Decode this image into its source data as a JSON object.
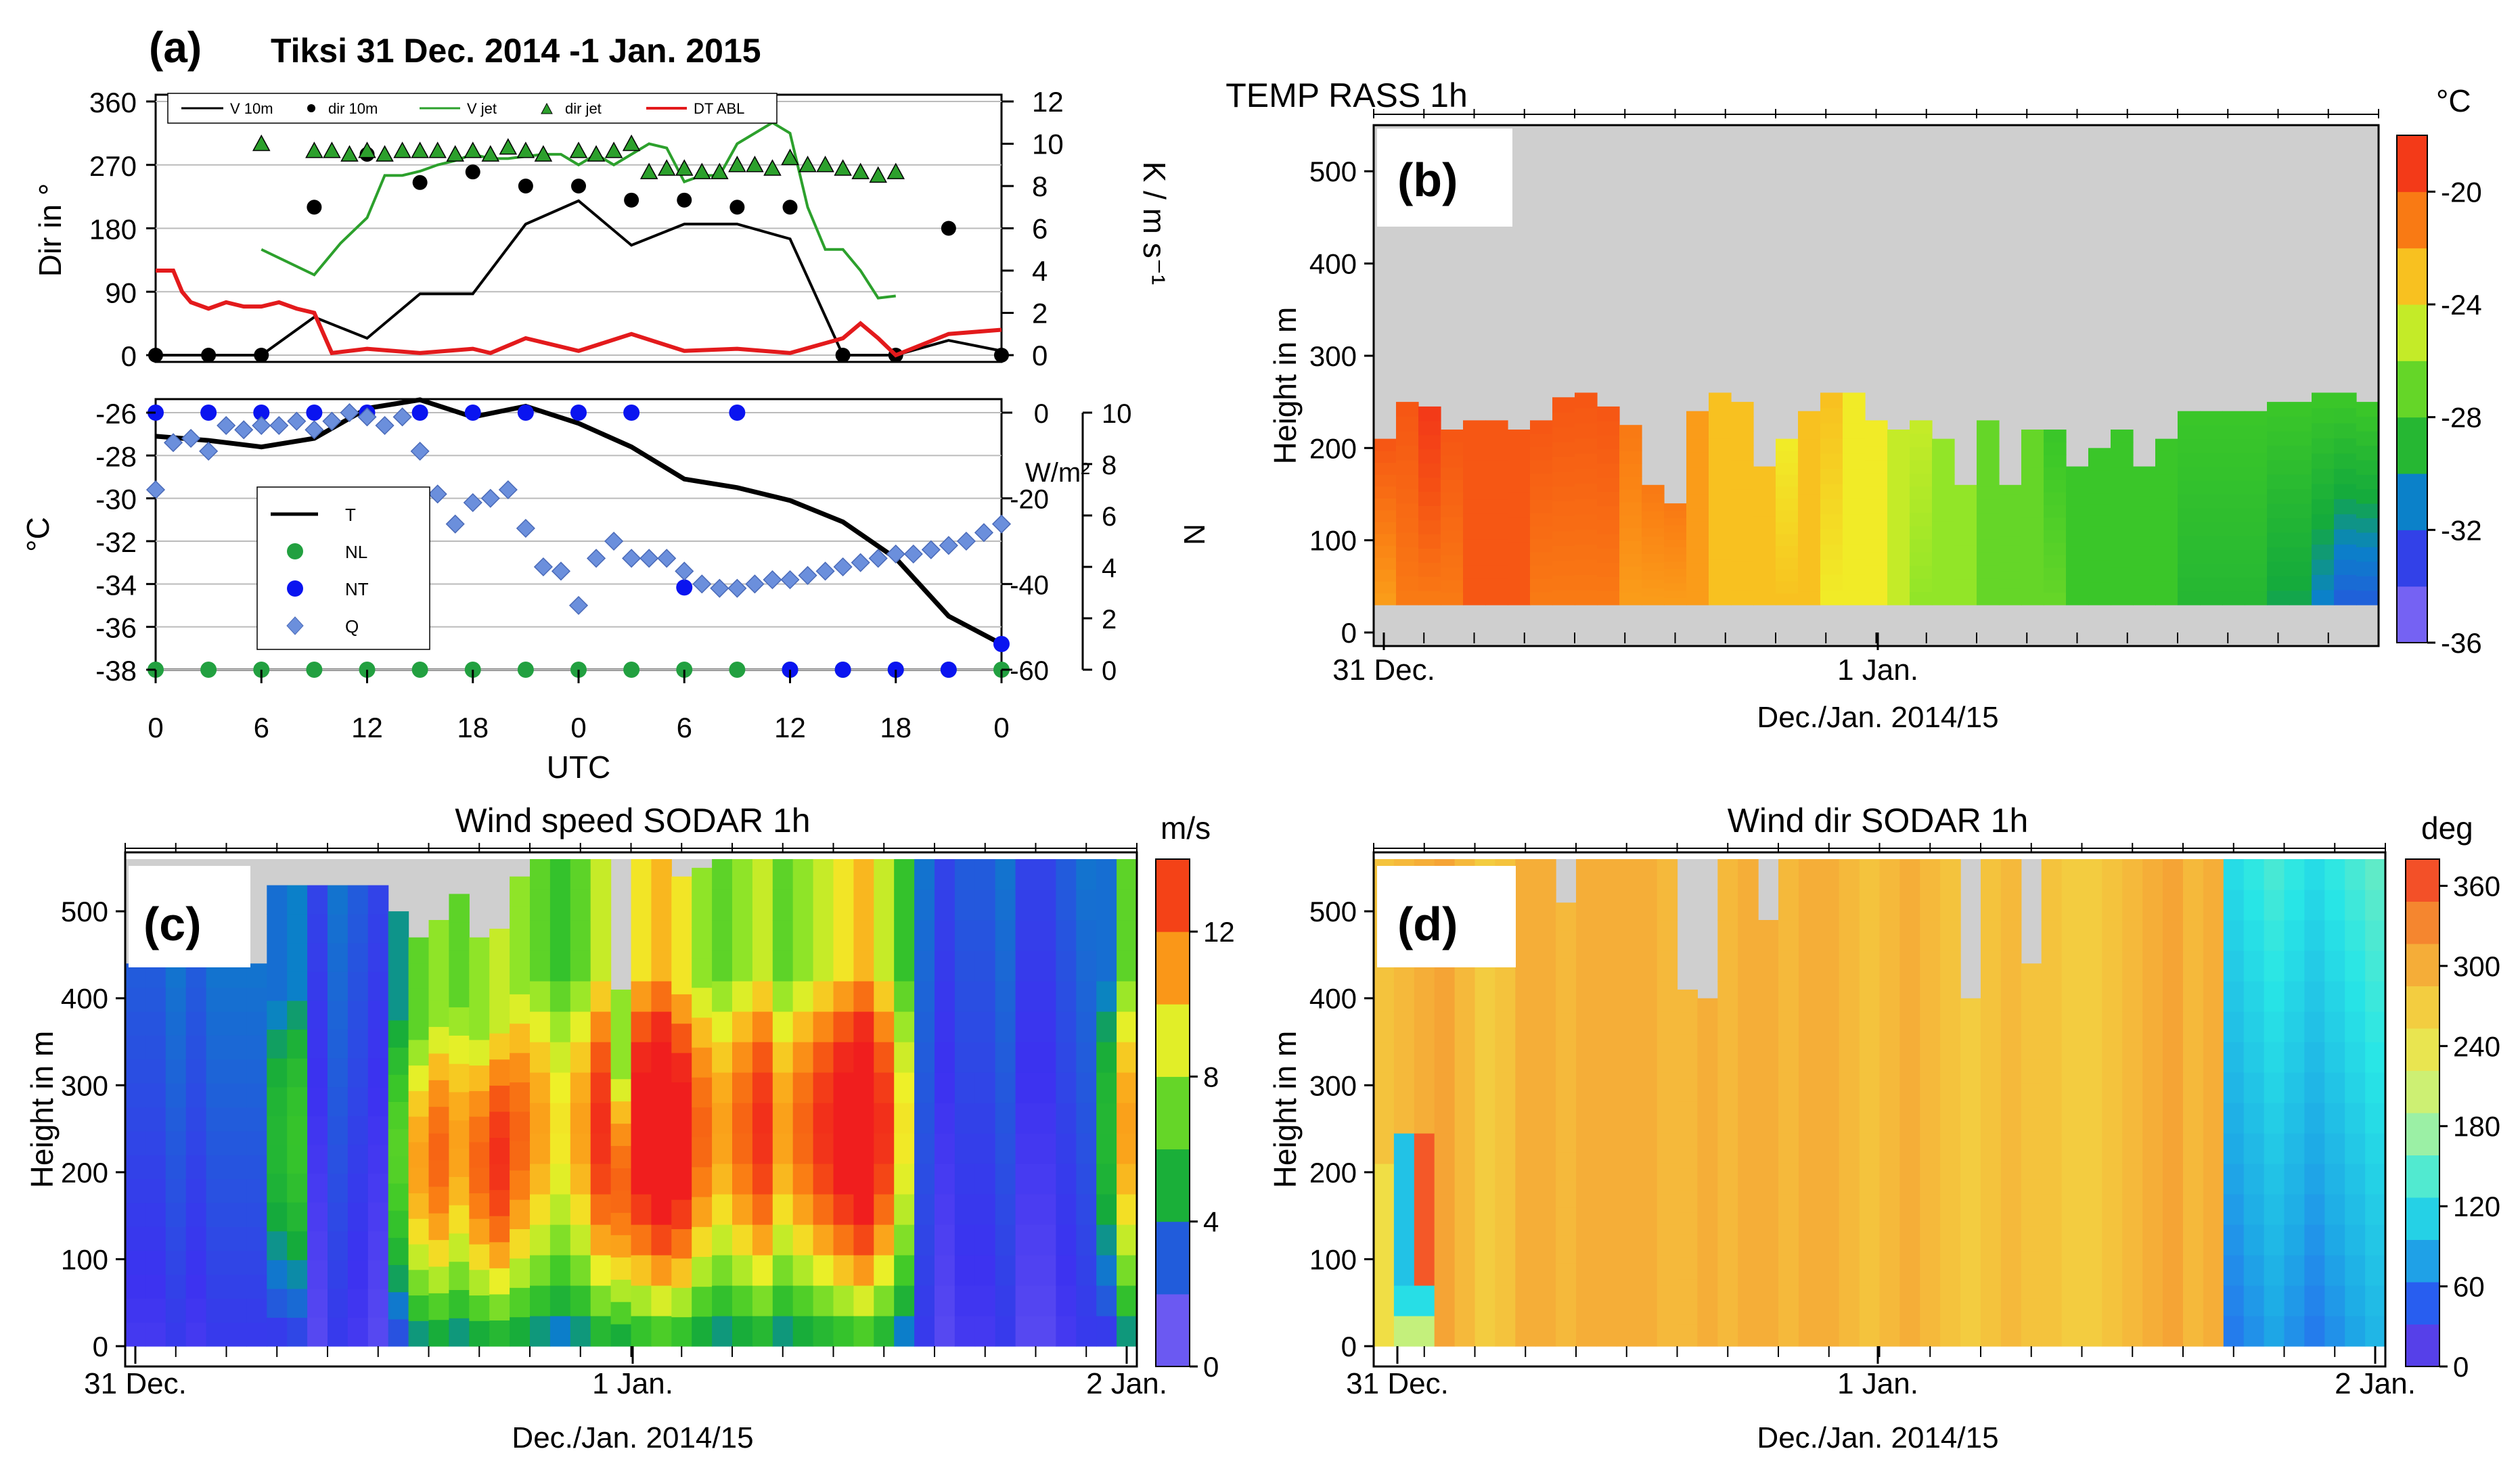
{
  "chart_data": [
    {
      "id": "a",
      "type": "line",
      "label": "(a)",
      "title": "Tiksi 31 Dec. 2014 -1 Jan. 2015",
      "x_ticks": [
        "0",
        "6",
        "12",
        "18",
        "0",
        "6",
        "12",
        "18",
        "0"
      ],
      "xlabel": "UTC",
      "top": {
        "ylabel_left": "Dir in °",
        "ylabel_right": "K / m s⁻¹",
        "yticks_left": [
          "360",
          "270",
          "180",
          "90",
          "0"
        ],
        "yticks_right": [
          "12",
          "10",
          "8",
          "6",
          "4",
          "2",
          "0"
        ],
        "ylim_left": [
          0,
          360
        ],
        "ylim_right": [
          0,
          12
        ],
        "legend": [
          "V 10m",
          "dir 10m",
          "V jet",
          "dir jet",
          "DT ABL"
        ],
        "series": [
          {
            "name": "V 10m",
            "color": "#000000",
            "axis": "right",
            "x": [
              6,
              9,
              12,
              15,
              18,
              21,
              24,
              27,
              30,
              33,
              36,
              39,
              42,
              45,
              48
            ],
            "values": [
              0,
              1.8,
              0.8,
              2.9,
              2.9,
              6.2,
              7.3,
              5.2,
              6.2,
              6.2,
              5.5,
              0,
              0,
              0.7,
              0.2
            ]
          },
          {
            "name": "dir 10m",
            "color": "#000000",
            "axis": "left",
            "x": [
              0,
              3,
              6,
              9,
              12,
              15,
              18,
              21,
              24,
              27,
              30,
              33,
              36,
              39,
              42,
              45,
              48
            ],
            "values": [
              0,
              0,
              0,
              210,
              285,
              245,
              260,
              240,
              240,
              220,
              220,
              210,
              210,
              0,
              0,
              180,
              0
            ]
          },
          {
            "name": "V jet",
            "color": "#2ca02c",
            "axis": "right",
            "x": [
              6,
              9,
              10.5,
              12,
              13,
              14,
              15,
              16,
              17,
              18,
              19,
              20,
              21,
              22,
              23,
              24,
              25,
              26,
              27,
              28,
              29,
              30,
              31,
              32,
              33,
              34,
              35,
              36,
              37,
              38,
              39,
              40,
              41,
              42
            ],
            "values": [
              5,
              3.8,
              5.3,
              6.5,
              8.5,
              8.5,
              8.7,
              9,
              9.2,
              9.5,
              9.3,
              9.3,
              9.4,
              9.5,
              9.5,
              9,
              9.5,
              9,
              9.5,
              10,
              9.8,
              8.2,
              8.5,
              8.5,
              10,
              10.5,
              11,
              10.5,
              7,
              5,
              5,
              4,
              2.7,
              2.8
            ]
          },
          {
            "name": "dir jet",
            "color": "#2ca02c",
            "axis": "left",
            "x": [
              6,
              9,
              10,
              11,
              12,
              13,
              14,
              15,
              16,
              17,
              18,
              19,
              20,
              21,
              22,
              24,
              25,
              26,
              27,
              28,
              29,
              30,
              31,
              32,
              33,
              34,
              35,
              36,
              37,
              38,
              39,
              40,
              41,
              42
            ],
            "values": [
              300,
              290,
              290,
              285,
              290,
              285,
              290,
              290,
              290,
              285,
              290,
              285,
              295,
              290,
              285,
              290,
              285,
              290,
              300,
              260,
              265,
              265,
              260,
              260,
              270,
              270,
              265,
              280,
              270,
              270,
              265,
              260,
              255,
              260
            ]
          },
          {
            "name": "DT ABL",
            "color": "#e31a1c",
            "axis": "right",
            "x": [
              0,
              1,
              1.5,
              2,
              3,
              4,
              5,
              6,
              7,
              8,
              9,
              10,
              12,
              15,
              18,
              19,
              21,
              24,
              27,
              30,
              33,
              36,
              39,
              40,
              41,
              42,
              45,
              48
            ],
            "values": [
              4,
              4,
              3,
              2.5,
              2.2,
              2.5,
              2.3,
              2.3,
              2.5,
              2.2,
              2,
              0.1,
              0.3,
              0.1,
              0.3,
              0.1,
              0.8,
              0.2,
              1,
              0.2,
              0.3,
              0.1,
              0.8,
              1.5,
              0.8,
              0,
              1,
              1.2
            ]
          }
        ]
      },
      "bottom": {
        "ylabel_left": "°C",
        "ylabel_mid": "W/m²",
        "ylabel_right": "N",
        "yticks_left": [
          "-26",
          "-28",
          "-30",
          "-32",
          "-34",
          "-36",
          "-38"
        ],
        "yticks_mid": [
          "0",
          "-20",
          "-40",
          "-60"
        ],
        "yticks_right": [
          "10",
          "8",
          "6",
          "4",
          "2",
          "0"
        ],
        "ylim_left": [
          -38,
          -26
        ],
        "ylim_mid": [
          -60,
          0
        ],
        "ylim_right": [
          0,
          10
        ],
        "legend": [
          "T",
          "NL",
          "NT",
          "Q"
        ],
        "series": [
          {
            "name": "T",
            "color": "#000000",
            "axis": "left",
            "x": [
              0,
              3,
              6,
              9,
              12,
              15,
              18,
              21,
              24,
              27,
              30,
              33,
              36,
              39,
              42,
              45,
              48
            ],
            "values": [
              -27.1,
              -27.3,
              -27.6,
              -27.2,
              -25.8,
              -25.4,
              -26.2,
              -25.7,
              -26.5,
              -27.6,
              -29.1,
              -29.5,
              -30.1,
              -31.1,
              -32.8,
              -35.5,
              -36.8
            ]
          },
          {
            "name": "NL",
            "color": "#22a040",
            "axis": "right",
            "x": [
              0,
              3,
              6,
              9,
              12,
              15,
              18,
              21,
              24,
              27,
              30,
              33,
              36,
              39,
              42,
              45,
              48
            ],
            "values": [
              0,
              0,
              0,
              0,
              0,
              0,
              0,
              0,
              0,
              0,
              0,
              0,
              0,
              0,
              0,
              0,
              0
            ]
          },
          {
            "name": "NT",
            "color": "#0a14f0",
            "axis": "right",
            "x": [
              0,
              3,
              6,
              9,
              12,
              15,
              18,
              21,
              24,
              27,
              30,
              33,
              36,
              39,
              42,
              45,
              48
            ],
            "values": [
              10,
              10,
              10,
              10,
              10,
              10,
              10,
              10,
              10,
              10,
              3.2,
              10,
              0,
              0,
              0,
              0,
              1
            ]
          },
          {
            "name": "Q",
            "color": "#6b8fdc",
            "axis": "mid",
            "x": [
              0,
              1,
              2,
              3,
              4,
              5,
              6,
              7,
              8,
              9,
              10,
              11,
              12,
              13,
              14,
              15,
              16,
              17,
              18,
              19,
              20,
              21,
              22,
              23,
              24,
              25,
              26,
              27,
              28,
              29,
              30,
              31,
              32,
              33,
              34,
              35,
              36,
              37,
              38,
              39,
              40,
              41,
              42,
              43,
              44,
              45,
              46,
              47,
              48
            ],
            "values": [
              -18,
              -7,
              -6,
              -9,
              -3,
              -4,
              -3,
              -3,
              -2,
              -4,
              -2,
              0,
              -1,
              -3,
              -1,
              -9,
              -19,
              -26,
              -21,
              -20,
              -18,
              -27,
              -36,
              -37,
              -45,
              -34,
              -30,
              -34,
              -34,
              -34,
              -37,
              -40,
              -41,
              -41,
              -40,
              -39,
              -39,
              -38,
              -37,
              -36,
              -35,
              -34,
              -33,
              -33,
              -32,
              -31,
              -30,
              -28,
              -26
            ]
          }
        ]
      }
    },
    {
      "id": "b",
      "type": "heatmap",
      "label": "(b)",
      "title": "TEMP RASS 1h",
      "ylabel": "Height in m",
      "xlabel": "Dec./Jan. 2014/15",
      "x_ticks": [
        "31 Dec.",
        "1 Jan."
      ],
      "yticks": [
        "500",
        "400",
        "300",
        "200",
        "100",
        "0"
      ],
      "ylim": [
        0,
        550
      ],
      "colorbar_unit": "°C",
      "colorbar_ticks": [
        "-20",
        "-24",
        "-28",
        "-32",
        "-36"
      ],
      "crange": [
        -36,
        -18
      ],
      "top_heights": [
        210,
        250,
        245,
        220,
        230,
        230,
        220,
        230,
        255,
        260,
        245,
        225,
        160,
        140,
        240,
        260,
        250,
        180,
        210,
        240,
        260,
        260,
        230,
        220,
        230,
        210,
        160,
        230,
        160,
        220,
        220,
        180,
        200,
        220,
        180,
        210,
        240,
        240,
        240,
        240,
        250,
        250,
        260,
        260,
        250
      ],
      "surface_temps": [
        -22,
        -21,
        -21,
        -21,
        -20,
        -20,
        -20,
        -21,
        -21,
        -21,
        -21,
        -22,
        -22,
        -22,
        -22,
        -23,
        -23,
        -23,
        -23,
        -23,
        -24,
        -24,
        -24,
        -25,
        -26,
        -26,
        -26,
        -27,
        -27,
        -27,
        -27,
        -28,
        -28,
        -28,
        -28,
        -28,
        -29,
        -29,
        -29,
        -29,
        -30,
        -30,
        -31,
        -32,
        -32
      ],
      "top_temps": [
        -20,
        -20,
        -19,
        -20,
        -20,
        -20,
        -20,
        -20,
        -20,
        -20,
        -20,
        -21,
        -21,
        -21,
        -22,
        -23,
        -23,
        -23,
        -24,
        -23,
        -23,
        -24,
        -24,
        -25,
        -25,
        -26,
        -26,
        -27,
        -27,
        -27,
        -28,
        -28,
        -28,
        -28,
        -28,
        -28,
        -28,
        -28,
        -28,
        -28,
        -28,
        -28,
        -28,
        -28,
        -28
      ]
    },
    {
      "id": "c",
      "type": "heatmap",
      "label": "(c)",
      "title": "Wind speed SODAR 1h",
      "ylabel": "Height in m",
      "xlabel": "Dec./Jan. 2014/15",
      "x_ticks": [
        "31 Dec.",
        "1 Jan.",
        "2 Jan."
      ],
      "yticks": [
        "500",
        "400",
        "300",
        "200",
        "100",
        "0"
      ],
      "ylim": [
        0,
        560
      ],
      "colorbar_unit": "m/s",
      "colorbar_ticks": [
        "12",
        "8",
        "4",
        "0"
      ],
      "crange": [
        0,
        14
      ],
      "top_heights": [
        440,
        440,
        440,
        440,
        440,
        440,
        440,
        530,
        530,
        530,
        530,
        530,
        530,
        500,
        470,
        490,
        520,
        470,
        480,
        540,
        560,
        560,
        560,
        560,
        410,
        560,
        560,
        540,
        550,
        560,
        560,
        560,
        560,
        560,
        560,
        560,
        560,
        560,
        560,
        560,
        560,
        560,
        560,
        560,
        560,
        560,
        560,
        560,
        560,
        560
      ],
      "speed_profile": [
        2.5,
        2.5,
        3,
        2.5,
        3,
        3,
        3,
        4,
        4.5,
        2,
        3,
        2.5,
        2,
        5,
        8,
        9,
        8,
        9,
        10,
        9,
        8,
        7,
        8,
        10,
        9,
        11,
        12,
        11,
        9,
        8,
        9,
        10,
        8,
        9,
        10,
        11,
        12,
        10,
        7,
        3,
        2,
        2.5,
        2.5,
        3,
        2,
        2,
        2.5,
        3,
        4,
        8
      ]
    },
    {
      "id": "d",
      "type": "heatmap",
      "label": "(d)",
      "title": "Wind dir SODAR 1h",
      "ylabel": "Height in m",
      "xlabel": "Dec./Jan. 2014/15",
      "x_ticks": [
        "31 Dec.",
        "1 Jan.",
        "2 Jan."
      ],
      "yticks": [
        "500",
        "400",
        "300",
        "200",
        "100",
        "0"
      ],
      "ylim": [
        0,
        560
      ],
      "colorbar_unit": "deg",
      "colorbar_ticks": [
        "360",
        "300",
        "240",
        "180",
        "120",
        "60",
        "0"
      ],
      "crange": [
        0,
        380
      ],
      "top_heights": [
        560,
        560,
        560,
        560,
        560,
        560,
        560,
        560,
        560,
        510,
        560,
        560,
        560,
        560,
        560,
        410,
        400,
        560,
        560,
        490,
        560,
        560,
        560,
        560,
        560,
        560,
        560,
        560,
        560,
        400,
        560,
        560,
        440,
        560,
        560,
        560,
        560,
        560,
        560,
        560,
        560,
        560,
        560,
        560,
        560,
        560,
        560,
        560,
        560,
        560
      ],
      "dir_profile": [
        280,
        290,
        300,
        310,
        290,
        270,
        280,
        300,
        300,
        290,
        300,
        300,
        300,
        300,
        290,
        290,
        300,
        290,
        300,
        300,
        290,
        300,
        300,
        290,
        280,
        290,
        300,
        290,
        280,
        270,
        280,
        290,
        280,
        280,
        270,
        270,
        280,
        290,
        300,
        310,
        290,
        300,
        120,
        130,
        140,
        130,
        120,
        130,
        140,
        150
      ]
    }
  ]
}
